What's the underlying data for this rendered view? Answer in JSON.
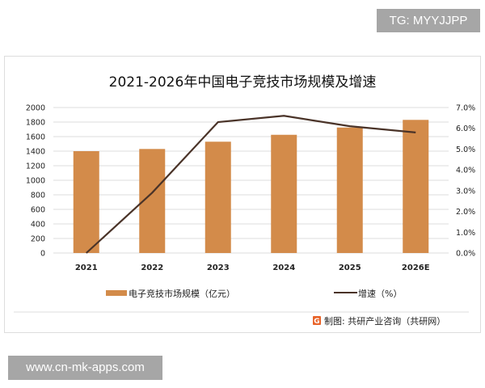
{
  "watermark_top": "TG: MYYJJPP",
  "watermark_bottom": "www.cn-mk-apps.com",
  "source": "制图: 共研产业咨询（共研网）",
  "chart_data": {
    "type": "bar+line",
    "title": "2021-2026年中国电子竞技市场规模及增速",
    "categories": [
      "2021",
      "2022",
      "2023",
      "2024",
      "2025",
      "2026E"
    ],
    "series": [
      {
        "name": "电子竞技市场规模（亿元）",
        "type": "bar",
        "axis": "left",
        "color": "#d38b4a",
        "values": [
          1400,
          1430,
          1530,
          1625,
          1725,
          1830
        ]
      },
      {
        "name": "增速（%）",
        "type": "line",
        "axis": "right",
        "color": "#4a3328",
        "values": [
          0.0,
          2.9,
          6.3,
          6.6,
          6.1,
          5.8
        ]
      }
    ],
    "y_left": {
      "range": [
        0,
        2000
      ],
      "ticks": [
        "0",
        "200",
        "400",
        "600",
        "800",
        "1000",
        "1200",
        "1400",
        "1600",
        "1800",
        "2000"
      ]
    },
    "y_right": {
      "range": [
        0,
        7
      ],
      "ticks": [
        "0.0%",
        "1.0%",
        "2.0%",
        "3.0%",
        "4.0%",
        "5.0%",
        "6.0%",
        "7.0%"
      ]
    },
    "grid": true,
    "legend_position": "bottom"
  }
}
